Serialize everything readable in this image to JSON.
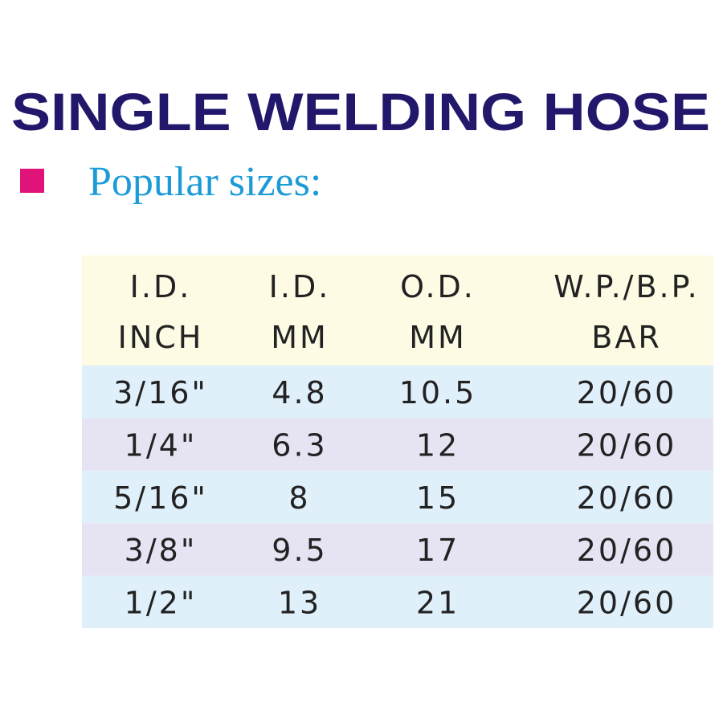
{
  "header": {
    "title": "SINGLE WELDING HOSE",
    "subtitle": "Popular sizes:"
  },
  "table": {
    "columns": [
      [
        "I.D.",
        "INCH"
      ],
      [
        "I.D.",
        "MM"
      ],
      [
        "O.D.",
        "MM"
      ],
      [
        "W.P./B.P.",
        "BAR"
      ]
    ],
    "rows": [
      [
        "3/16\"",
        "4.8",
        "10.5",
        "20/60"
      ],
      [
        "1/4\"",
        "6.3",
        "12",
        "20/60"
      ],
      [
        "5/16\"",
        "8",
        "15",
        "20/60"
      ],
      [
        "3/8\"",
        "9.5",
        "17",
        "20/60"
      ],
      [
        "1/2\"",
        "13",
        "21",
        "20/60"
      ]
    ]
  }
}
